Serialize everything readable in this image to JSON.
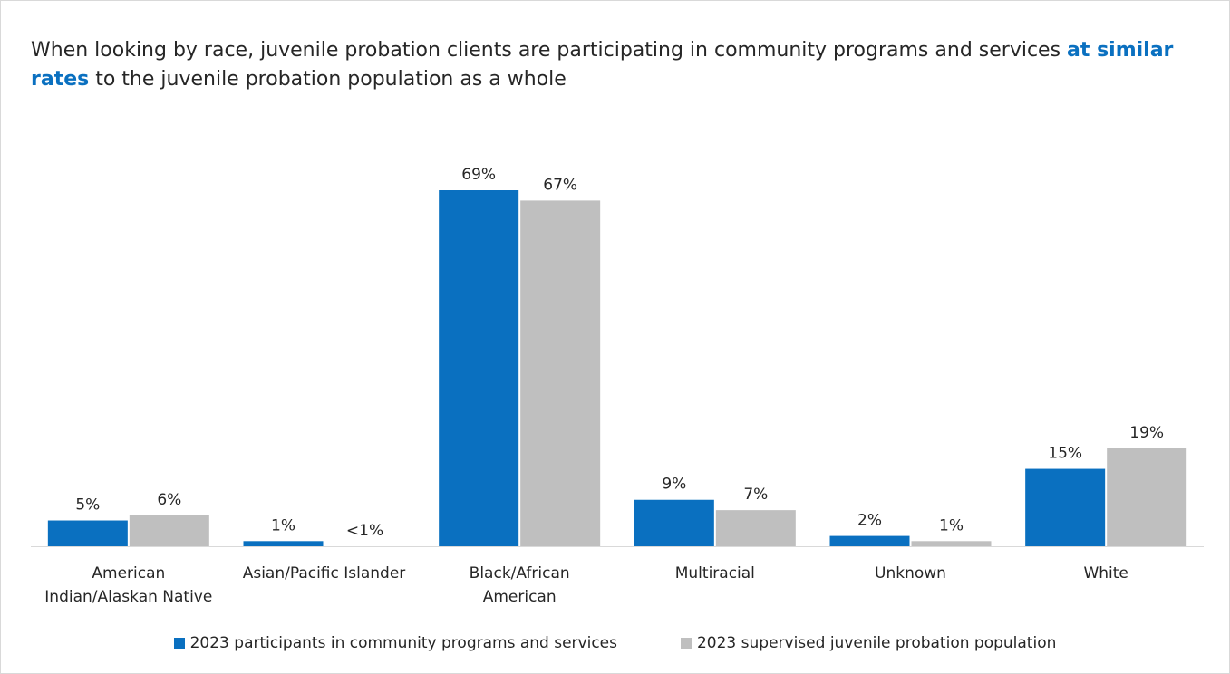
{
  "title": {
    "prefix": "When looking by race, juvenile probation clients are participating in community programs and services ",
    "highlight": "at similar rates",
    "suffix": " to  the juvenile probation population as a whole"
  },
  "colors": {
    "series1": "#0a70c0",
    "series2": "#bfbfbf",
    "highlight": "#0a70c0",
    "axis": "#d9d9d9"
  },
  "chart_data": {
    "type": "bar",
    "categories": [
      [
        "American",
        "Indian/Alaskan Native"
      ],
      [
        "Asian/Pacific Islander"
      ],
      [
        "Black/African",
        "American"
      ],
      [
        "Multiracial"
      ],
      [
        "Unknown"
      ],
      [
        "White"
      ]
    ],
    "series": [
      {
        "name": "2023 participants in community programs and services",
        "values": [
          5,
          1,
          69,
          9,
          2,
          15
        ],
        "labels": [
          "5%",
          "1%",
          "69%",
          "9%",
          "2%",
          "15%"
        ]
      },
      {
        "name": "2023 supervised juvenile probation population",
        "values": [
          6,
          0,
          67,
          7,
          1,
          19
        ],
        "labels": [
          "6%",
          "<1%",
          "67%",
          "7%",
          "1%",
          "19%"
        ]
      }
    ],
    "ylim": [
      0,
      69
    ],
    "grid": false,
    "legend_position": "bottom"
  }
}
